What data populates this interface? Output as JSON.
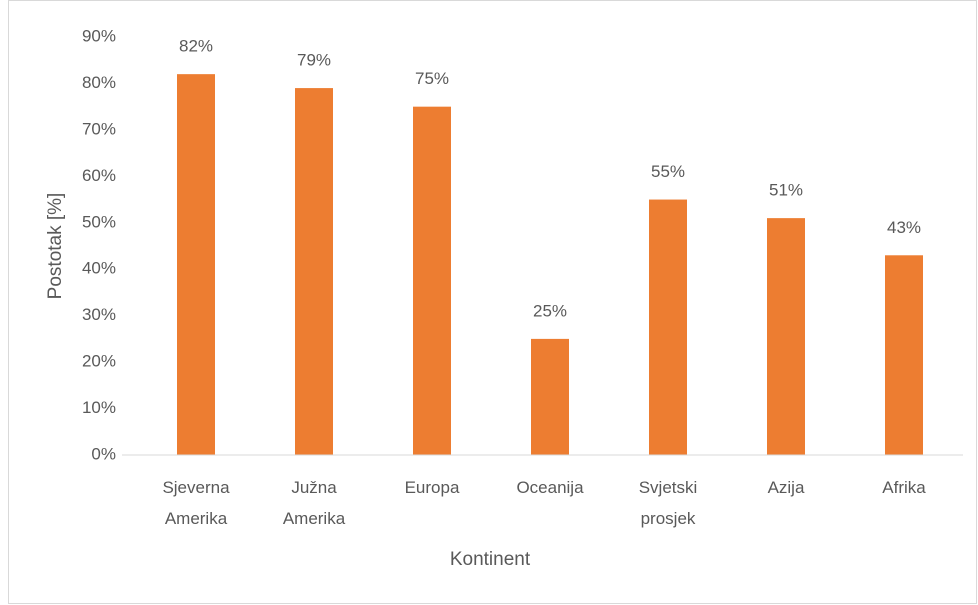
{
  "chart_data": {
    "type": "bar",
    "x_label": "Kontinent",
    "y_label": "Postotak [%]",
    "categories": [
      "Sjeverna Amerika",
      "Južna Amerika",
      "Europa",
      "Oceanija",
      "Svjetski prosjek",
      "Azija",
      "Afrika"
    ],
    "values": [
      82,
      79,
      75,
      25,
      55,
      51,
      43
    ],
    "value_labels": [
      "82%",
      "79%",
      "75%",
      "25%",
      "55%",
      "51%",
      "43%"
    ],
    "color": "#ed7d31",
    "ylim": [
      0,
      90
    ],
    "yticks": [
      {
        "value": 0,
        "label": "0%"
      },
      {
        "value": 10,
        "label": "10%"
      },
      {
        "value": 20,
        "label": "20%"
      },
      {
        "value": 30,
        "label": "30%"
      },
      {
        "value": 40,
        "label": "40%"
      },
      {
        "value": 50,
        "label": "50%"
      },
      {
        "value": 60,
        "label": "60%"
      },
      {
        "value": 70,
        "label": "70%"
      },
      {
        "value": 80,
        "label": "80%"
      },
      {
        "value": 90,
        "label": "90%"
      }
    ],
    "grid": false
  }
}
